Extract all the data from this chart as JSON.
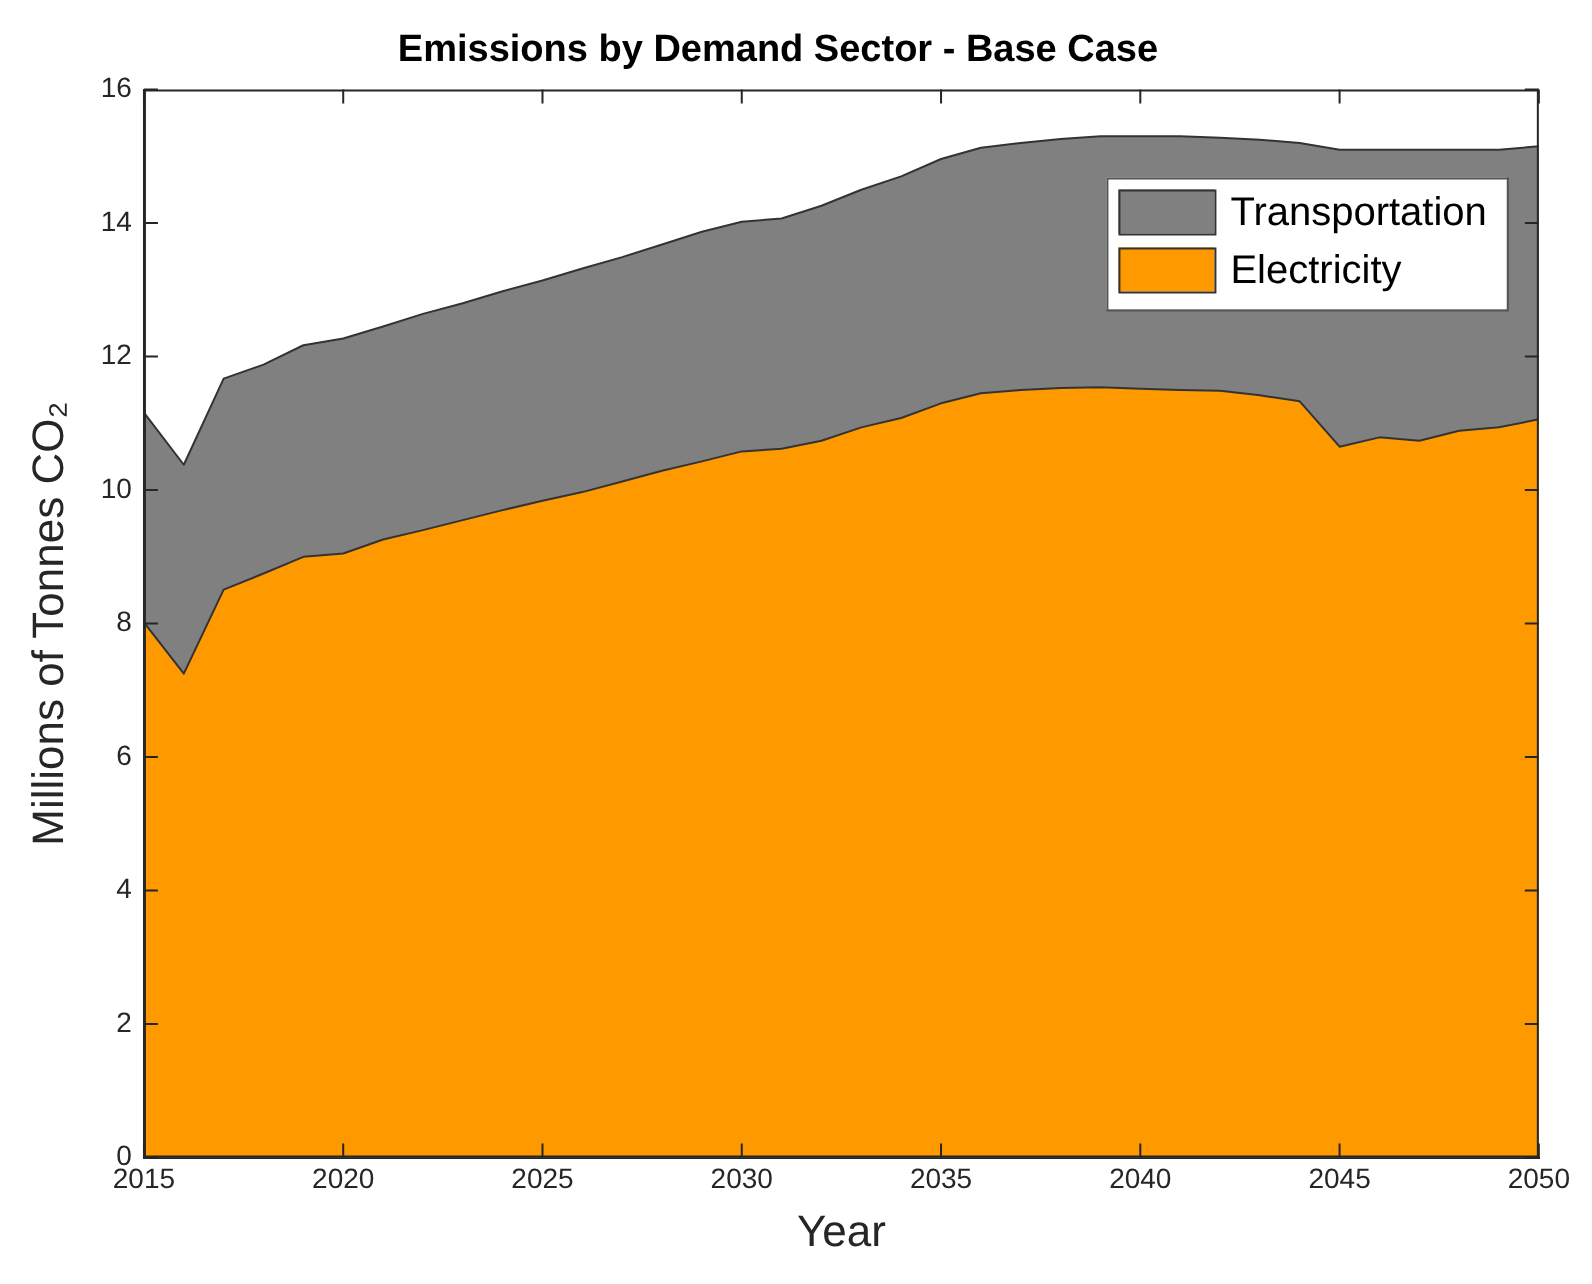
{
  "chart_data": {
    "type": "area",
    "title": "Emissions by Demand Sector - Base Case",
    "xlabel": "Year",
    "ylabel": "Millions of Tonnes CO₂",
    "x": [
      2015,
      2016,
      2017,
      2018,
      2019,
      2020,
      2021,
      2022,
      2023,
      2024,
      2025,
      2026,
      2027,
      2028,
      2029,
      2030,
      2031,
      2032,
      2033,
      2034,
      2035,
      2036,
      2037,
      2038,
      2039,
      2040,
      2041,
      2042,
      2043,
      2044,
      2045,
      2046,
      2047,
      2048,
      2049,
      2050
    ],
    "stacked": true,
    "series": [
      {
        "name": "Electricity",
        "color": "#ff9900",
        "values": [
          8.02,
          7.25,
          8.51,
          8.75,
          9.0,
          9.05,
          9.26,
          9.4,
          9.55,
          9.7,
          9.84,
          9.97,
          10.13,
          10.29,
          10.43,
          10.58,
          10.62,
          10.74,
          10.94,
          11.08,
          11.3,
          11.45,
          11.5,
          11.53,
          11.54,
          11.52,
          11.5,
          11.49,
          11.42,
          11.33,
          10.65,
          10.79,
          10.74,
          10.89,
          10.94,
          11.06
        ]
      },
      {
        "name": "Transportation",
        "color": "#808080",
        "values": [
          3.14,
          3.13,
          3.16,
          3.13,
          3.17,
          3.22,
          3.19,
          3.24,
          3.25,
          3.28,
          3.3,
          3.35,
          3.36,
          3.39,
          3.44,
          3.44,
          3.45,
          3.52,
          3.56,
          3.62,
          3.66,
          3.68,
          3.7,
          3.73,
          3.76,
          3.78,
          3.8,
          3.79,
          3.83,
          3.87,
          4.45,
          4.31,
          4.36,
          4.21,
          4.16,
          4.09
        ]
      }
    ],
    "xlim": [
      2015,
      2050
    ],
    "xticks": [
      2015,
      2020,
      2025,
      2030,
      2035,
      2040,
      2045,
      2050
    ],
    "ylim": [
      0,
      16
    ],
    "yticks": [
      0,
      2,
      4,
      6,
      8,
      10,
      12,
      14,
      16
    ],
    "grid": false,
    "legend": "top right"
  }
}
